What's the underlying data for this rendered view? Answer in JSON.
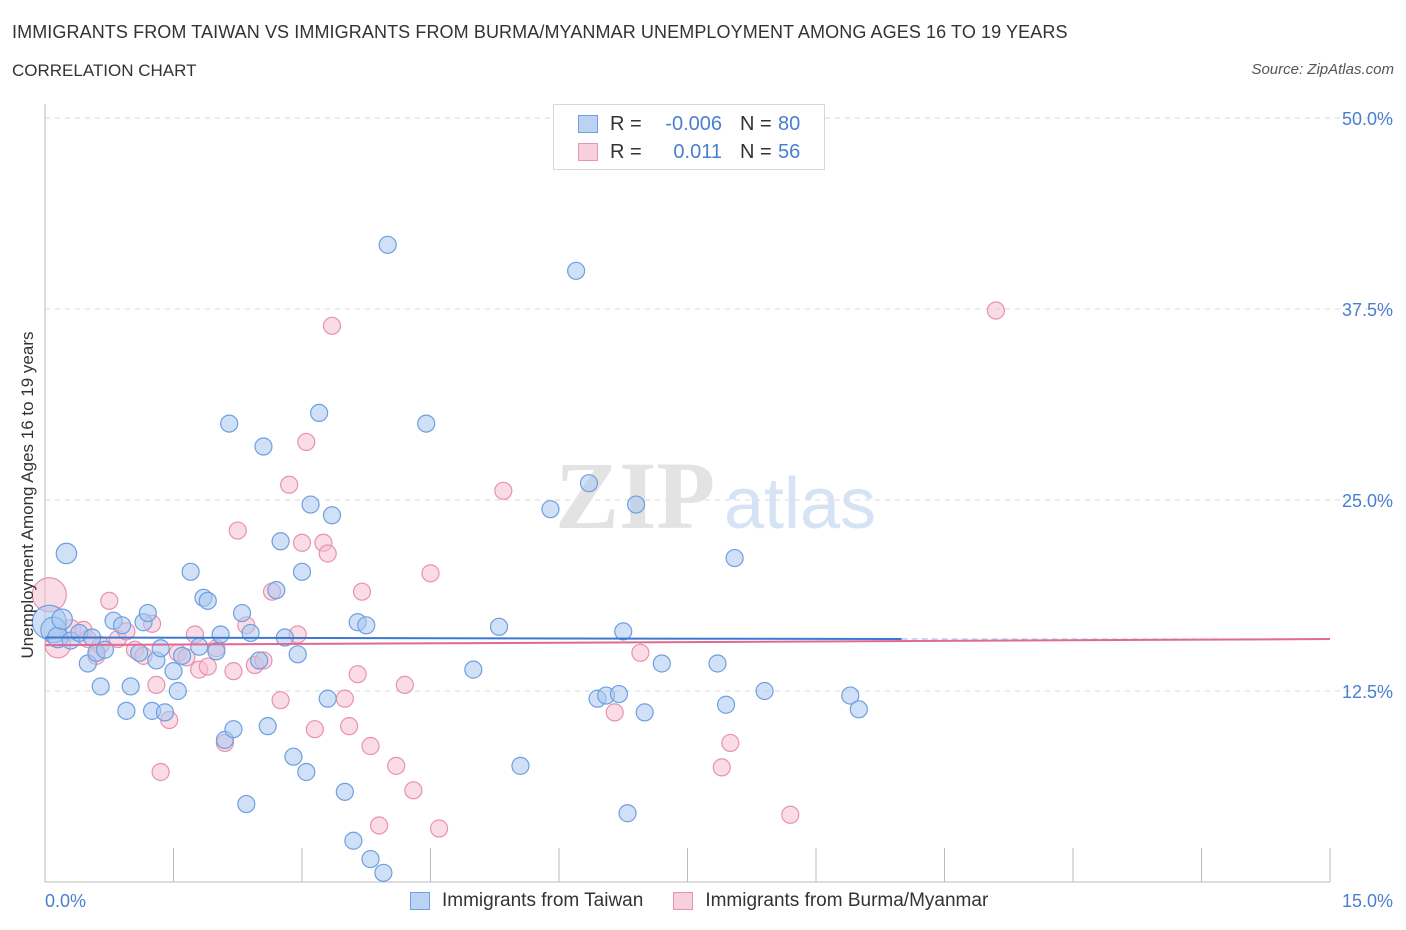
{
  "header": {
    "title": "IMMIGRANTS FROM TAIWAN VS IMMIGRANTS FROM BURMA/MYANMAR UNEMPLOYMENT AMONG AGES 16 TO 19 YEARS",
    "subtitle": "CORRELATION CHART",
    "source": "Source: ZipAtlas.com"
  },
  "legend": {
    "rows": [
      {
        "r_label": "R =",
        "r_value": "-0.006",
        "n_label": "N =",
        "n_value": "80"
      },
      {
        "r_label": "R =",
        "r_value": "0.011",
        "n_label": "N =",
        "n_value": "56"
      }
    ]
  },
  "watermark": {
    "zip": "ZIP",
    "atlas": "atlas"
  },
  "colors": {
    "blue_fill": "#a9c8f0",
    "blue_stroke": "#6e9fe0",
    "blue_line": "#3a78d4",
    "pink_fill": "#f6bfd1",
    "pink_stroke": "#e892b0",
    "pink_line": "#e06a95",
    "tick_text": "#4a7fd0",
    "grid": "#d9d9d9"
  },
  "chart_data": {
    "type": "scatter",
    "title": "IMMIGRANTS FROM TAIWAN VS IMMIGRANTS FROM BURMA/MYANMAR UNEMPLOYMENT AMONG AGES 16 TO 19 YEARS",
    "xlabel": "",
    "ylabel": "Unemployment Among Ages 16 to 19 years",
    "xlim": [
      0,
      15
    ],
    "ylim": [
      0,
      50
    ],
    "x_tick_labels": [
      "0.0%",
      "15.0%"
    ],
    "y_ticks": [
      12.5,
      25.0,
      37.5,
      50.0
    ],
    "y_tick_labels": [
      "12.5%",
      "25.0%",
      "37.5%",
      "50.0%"
    ],
    "legend_position": "bottom",
    "series": [
      {
        "name": "Immigrants from Taiwan",
        "color": "blue",
        "r": -0.006,
        "n": 80,
        "trend": {
          "x": [
            0,
            10.0
          ],
          "y": [
            16.0,
            15.9
          ]
        },
        "points": [
          [
            0.05,
            17.0,
            2
          ],
          [
            0.1,
            16.5,
            1.5
          ],
          [
            0.15,
            16.0,
            1.2
          ],
          [
            0.2,
            17.2,
            1.2
          ],
          [
            0.25,
            21.5,
            1.2
          ],
          [
            0.3,
            15.8,
            1
          ],
          [
            0.4,
            16.3,
            1
          ],
          [
            0.5,
            14.3,
            1
          ],
          [
            0.55,
            16.0,
            1
          ],
          [
            0.6,
            15.0,
            1
          ],
          [
            0.7,
            15.2,
            1
          ],
          [
            0.8,
            17.1,
            1
          ],
          [
            0.9,
            16.8,
            1
          ],
          [
            0.95,
            11.2,
            1
          ],
          [
            1.0,
            12.8,
            1
          ],
          [
            1.1,
            15.0,
            1
          ],
          [
            1.15,
            17.0,
            1
          ],
          [
            1.2,
            17.6,
            1
          ],
          [
            1.25,
            11.2,
            1
          ],
          [
            1.3,
            14.5,
            1
          ],
          [
            1.35,
            15.3,
            1
          ],
          [
            1.4,
            11.1,
            1
          ],
          [
            1.5,
            13.8,
            1
          ],
          [
            1.55,
            12.5,
            1
          ],
          [
            1.6,
            14.8,
            1
          ],
          [
            1.7,
            20.3,
            1
          ],
          [
            1.8,
            15.4,
            1
          ],
          [
            1.85,
            18.6,
            1
          ],
          [
            1.9,
            18.4,
            1
          ],
          [
            2.0,
            15.1,
            1
          ],
          [
            2.05,
            16.2,
            1
          ],
          [
            2.1,
            9.3,
            1
          ],
          [
            2.15,
            30.0,
            1
          ],
          [
            2.2,
            10.0,
            1
          ],
          [
            2.3,
            17.6,
            1
          ],
          [
            2.35,
            5.1,
            1
          ],
          [
            2.4,
            16.3,
            1
          ],
          [
            2.5,
            14.5,
            1
          ],
          [
            2.55,
            28.5,
            1
          ],
          [
            2.6,
            10.2,
            1
          ],
          [
            2.7,
            19.1,
            1
          ],
          [
            2.75,
            22.3,
            1
          ],
          [
            2.8,
            16.0,
            1
          ],
          [
            2.9,
            8.2,
            1
          ],
          [
            2.95,
            14.9,
            1
          ],
          [
            3.0,
            20.3,
            1
          ],
          [
            3.05,
            7.2,
            1
          ],
          [
            3.1,
            24.7,
            1
          ],
          [
            3.2,
            30.7,
            1
          ],
          [
            3.3,
            12.0,
            1
          ],
          [
            3.35,
            24.0,
            1
          ],
          [
            3.5,
            5.9,
            1
          ],
          [
            3.6,
            2.7,
            1
          ],
          [
            3.65,
            17.0,
            1
          ],
          [
            3.75,
            16.8,
            1
          ],
          [
            3.8,
            1.5,
            1
          ],
          [
            3.95,
            0.6,
            1
          ],
          [
            4.0,
            41.7,
            1
          ],
          [
            4.45,
            30.0,
            1
          ],
          [
            5.0,
            13.9,
            1
          ],
          [
            5.3,
            16.7,
            1
          ],
          [
            5.55,
            7.6,
            1
          ],
          [
            5.9,
            24.4,
            1
          ],
          [
            6.2,
            40.0,
            1
          ],
          [
            6.35,
            26.1,
            1
          ],
          [
            6.45,
            12.0,
            1
          ],
          [
            6.55,
            12.2,
            1
          ],
          [
            6.7,
            12.3,
            1
          ],
          [
            6.75,
            16.4,
            1
          ],
          [
            6.8,
            4.5,
            1
          ],
          [
            6.9,
            24.7,
            1
          ],
          [
            7.0,
            11.1,
            1
          ],
          [
            7.2,
            14.3,
            1
          ],
          [
            7.85,
            14.3,
            1
          ],
          [
            7.95,
            11.6,
            1
          ],
          [
            8.05,
            21.2,
            1
          ],
          [
            8.4,
            12.5,
            1
          ],
          [
            9.4,
            12.2,
            1
          ],
          [
            9.5,
            11.3,
            1
          ],
          [
            0.65,
            12.8,
            1
          ]
        ]
      },
      {
        "name": "Immigrants from Burma/Myanmar",
        "color": "pink",
        "r": 0.011,
        "n": 56,
        "trend": {
          "x": [
            0,
            15.0
          ],
          "y": [
            15.5,
            15.9
          ]
        },
        "points": [
          [
            0.05,
            18.8,
            2
          ],
          [
            0.15,
            15.5,
            1.5
          ],
          [
            0.3,
            16.5,
            1.2
          ],
          [
            0.45,
            16.5,
            1
          ],
          [
            0.5,
            15.9,
            1
          ],
          [
            0.6,
            14.8,
            1
          ],
          [
            0.65,
            15.5,
            1
          ],
          [
            0.75,
            18.4,
            1
          ],
          [
            0.85,
            15.9,
            1
          ],
          [
            0.95,
            16.4,
            1
          ],
          [
            1.05,
            15.2,
            1
          ],
          [
            1.15,
            14.8,
            1
          ],
          [
            1.25,
            16.9,
            1
          ],
          [
            1.3,
            12.9,
            1
          ],
          [
            1.35,
            7.2,
            1
          ],
          [
            1.45,
            10.6,
            1
          ],
          [
            1.55,
            15.0,
            1
          ],
          [
            1.65,
            14.7,
            1
          ],
          [
            1.75,
            16.2,
            1
          ],
          [
            1.8,
            13.9,
            1
          ],
          [
            1.9,
            14.1,
            1
          ],
          [
            2.0,
            15.3,
            1
          ],
          [
            2.1,
            9.1,
            1
          ],
          [
            2.2,
            13.8,
            1
          ],
          [
            2.25,
            23.0,
            1
          ],
          [
            2.35,
            16.8,
            1
          ],
          [
            2.45,
            14.2,
            1
          ],
          [
            2.55,
            14.5,
            1
          ],
          [
            2.65,
            19.0,
            1
          ],
          [
            2.75,
            11.9,
            1
          ],
          [
            2.85,
            26.0,
            1
          ],
          [
            2.95,
            16.2,
            1
          ],
          [
            3.0,
            22.2,
            1
          ],
          [
            3.05,
            28.8,
            1
          ],
          [
            3.15,
            10.0,
            1
          ],
          [
            3.25,
            22.2,
            1
          ],
          [
            3.3,
            21.5,
            1
          ],
          [
            3.35,
            36.4,
            1
          ],
          [
            3.5,
            12.0,
            1
          ],
          [
            3.55,
            10.2,
            1
          ],
          [
            3.65,
            13.6,
            1
          ],
          [
            3.7,
            19.0,
            1
          ],
          [
            3.8,
            8.9,
            1
          ],
          [
            3.9,
            3.7,
            1
          ],
          [
            4.1,
            7.6,
            1
          ],
          [
            4.2,
            12.9,
            1
          ],
          [
            4.3,
            6.0,
            1
          ],
          [
            4.5,
            20.2,
            1
          ],
          [
            4.6,
            3.5,
            1
          ],
          [
            5.35,
            25.6,
            1
          ],
          [
            6.65,
            11.1,
            1
          ],
          [
            6.95,
            15.0,
            1
          ],
          [
            7.9,
            7.5,
            1
          ],
          [
            8.0,
            9.1,
            1
          ],
          [
            8.7,
            4.4,
            1
          ],
          [
            11.1,
            37.4,
            1
          ]
        ]
      }
    ]
  },
  "bottom_legend": {
    "items": [
      "Immigrants from Taiwan",
      "Immigrants from Burma/Myanmar"
    ]
  }
}
